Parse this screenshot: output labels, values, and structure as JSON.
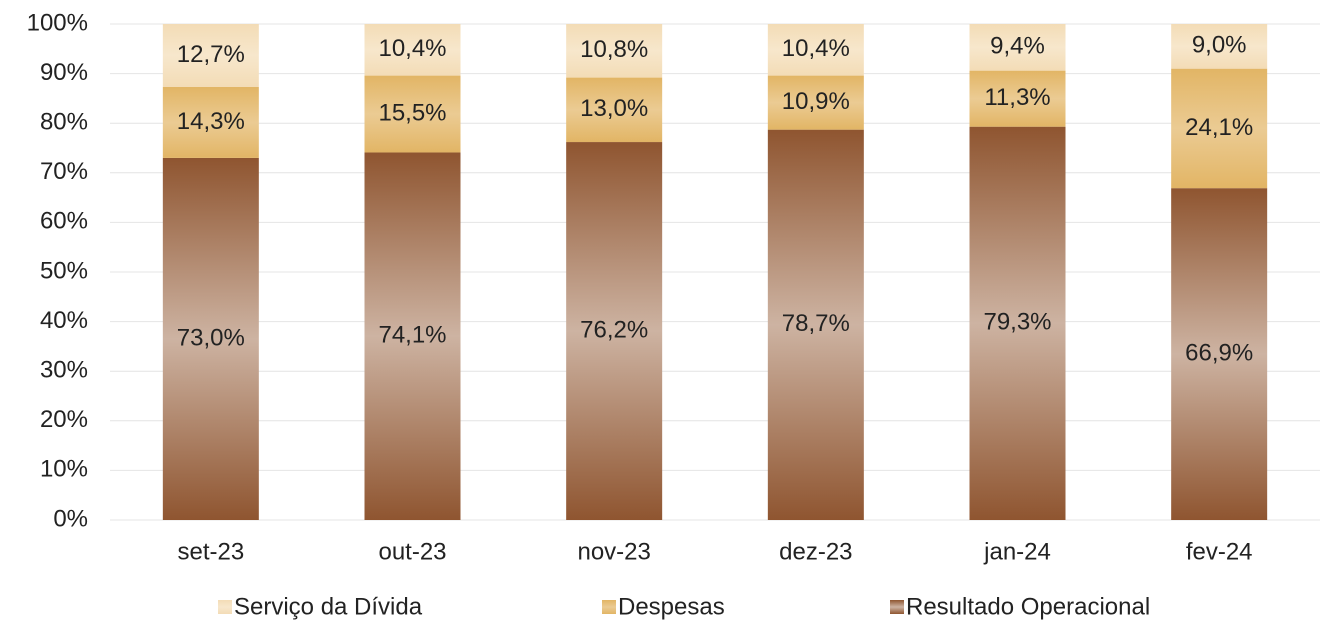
{
  "chart_data": {
    "type": "stacked_bar",
    "categories": [
      "set-23",
      "out-23",
      "nov-23",
      "dez-23",
      "jan-24",
      "fev-24"
    ],
    "series": [
      {
        "name": "Resultado Operacional",
        "color": "#8f5530",
        "values": [
          73.0,
          74.1,
          76.2,
          78.7,
          79.3,
          66.9
        ],
        "value_labels": [
          "73,0%",
          "74,1%",
          "76,2%",
          "78,7%",
          "79,3%",
          "66,9%"
        ]
      },
      {
        "name": "Despesas",
        "color": "#e2b565",
        "values": [
          14.3,
          15.5,
          13.0,
          10.9,
          11.3,
          24.1
        ],
        "value_labels": [
          "14,3%",
          "15,5%",
          "13,0%",
          "10,9%",
          "11,3%",
          "24,1%"
        ]
      },
      {
        "name": "Serviço da Dívida",
        "color": "#f3dcb6",
        "values": [
          12.7,
          10.4,
          10.8,
          10.4,
          9.4,
          9.0
        ],
        "value_labels": [
          "12,7%",
          "10,4%",
          "10,8%",
          "10,4%",
          "9,4%",
          "9,0%"
        ]
      }
    ],
    "ylim": [
      0,
      100
    ],
    "yticks": [
      {
        "value": 0,
        "label": "0%"
      },
      {
        "value": 10,
        "label": "10%"
      },
      {
        "value": 20,
        "label": "20%"
      },
      {
        "value": 30,
        "label": "30%"
      },
      {
        "value": 40,
        "label": "40%"
      },
      {
        "value": 50,
        "label": "50%"
      },
      {
        "value": 60,
        "label": "60%"
      },
      {
        "value": 70,
        "label": "70%"
      },
      {
        "value": 80,
        "label": "80%"
      },
      {
        "value": 90,
        "label": "90%"
      },
      {
        "value": 100,
        "label": "100%"
      }
    ],
    "grid": true,
    "legend": "bottom"
  }
}
